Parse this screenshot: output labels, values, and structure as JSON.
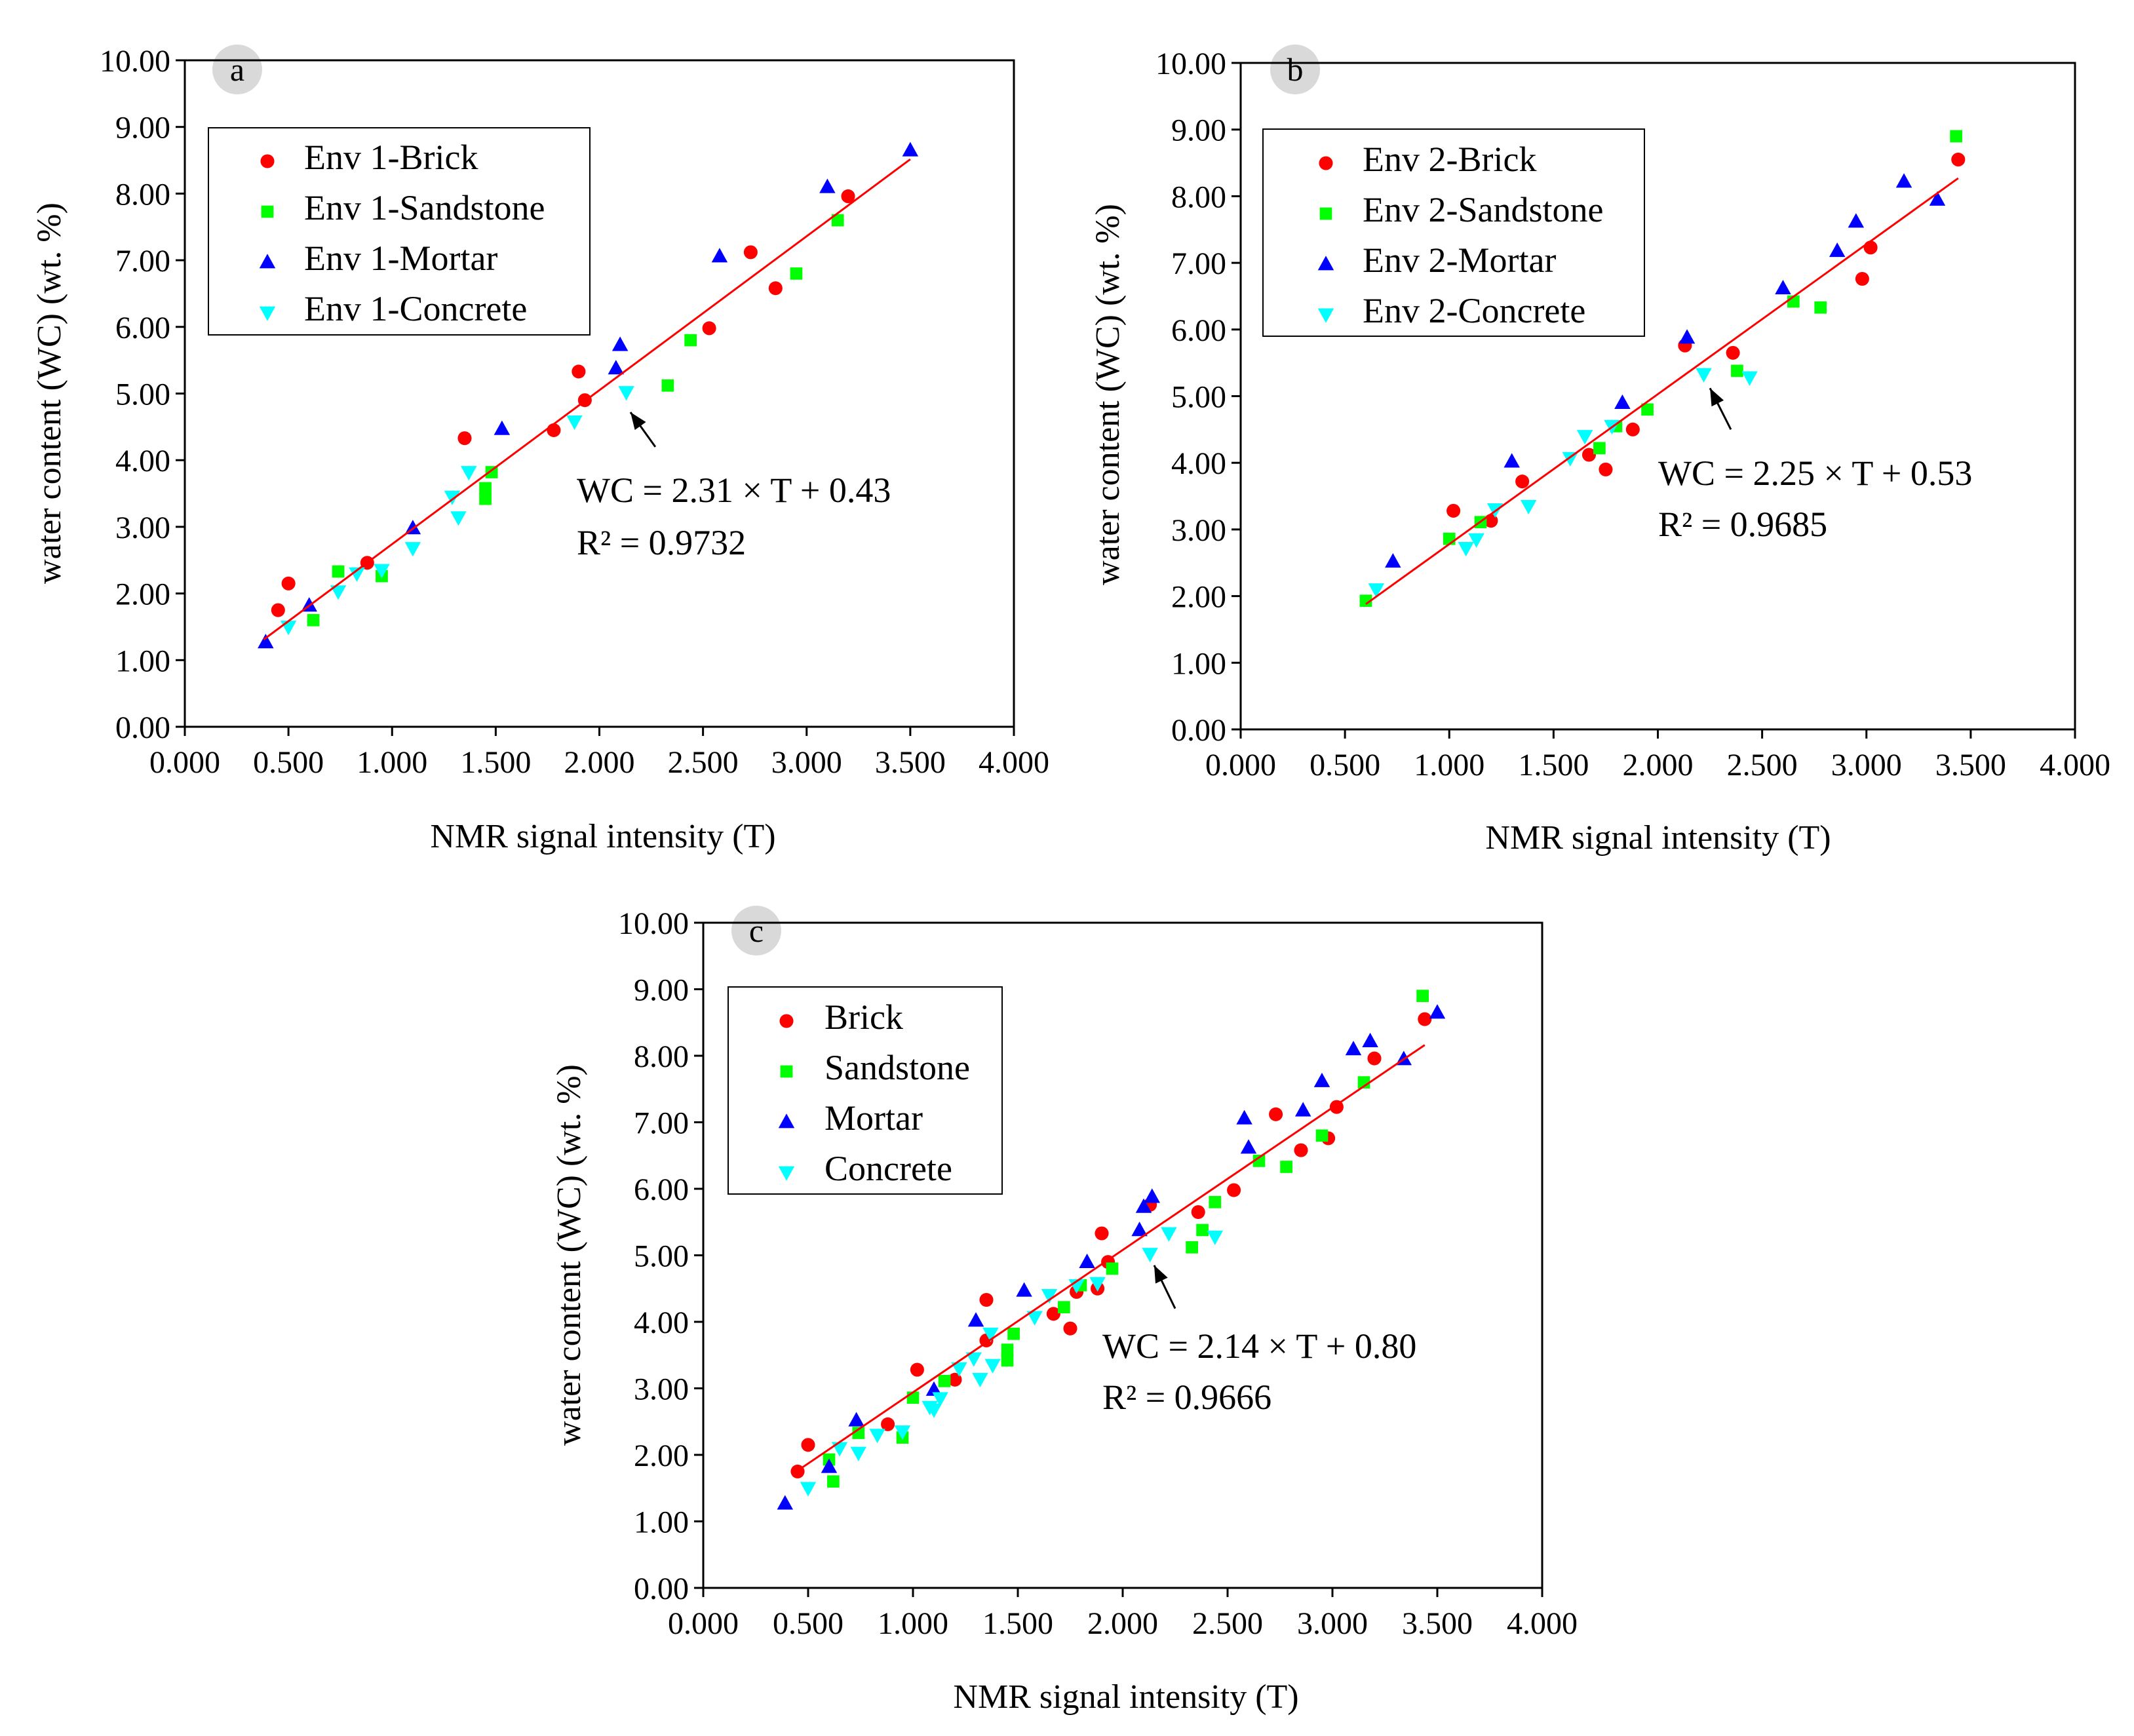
{
  "colors": {
    "brick": "#ff0000",
    "sandstone": "#00ff00",
    "mortar": "#0000ff",
    "concrete": "#00ffff",
    "fit_line": "#ff0000",
    "badge": "#d9d9d9"
  },
  "chart_data": [
    {
      "type": "scatter",
      "panel_label": "a",
      "xlabel": "NMR signal intensity (T)",
      "ylabel": "water content (WC) (wt. %)",
      "xlim": [
        0,
        4
      ],
      "ylim": [
        0,
        10
      ],
      "x_ticks": [
        "0.000",
        "0.500",
        "1.000",
        "1.500",
        "2.000",
        "2.500",
        "3.000",
        "3.500",
        "4.000"
      ],
      "y_ticks": [
        "0.00",
        "1.00",
        "2.00",
        "3.00",
        "4.00",
        "5.00",
        "6.00",
        "7.00",
        "8.00",
        "9.00",
        "10.00"
      ],
      "legend": [
        "Env 1-Brick",
        "Env 1-Sandstone",
        "Env 1-Mortar",
        "Env 1-Concrete"
      ],
      "equation": "WC = 2.31 × T + 0.43",
      "r2": "R² = 0.9732",
      "fit": {
        "slope": 2.31,
        "intercept": 0.43,
        "x_range": [
          0.38,
          3.5
        ]
      },
      "arrow": {
        "from": [
          2.27,
          4.2
        ],
        "to": [
          2.15,
          4.72
        ]
      },
      "series": [
        {
          "name": "Env 1-Brick",
          "marker": "circle",
          "color_key": "brick",
          "points": [
            [
              0.45,
              1.75
            ],
            [
              0.5,
              2.15
            ],
            [
              0.88,
              2.46
            ],
            [
              1.35,
              4.33
            ],
            [
              1.78,
              4.45
            ],
            [
              1.9,
              5.33
            ],
            [
              1.93,
              4.9
            ],
            [
              2.53,
              5.98
            ],
            [
              2.73,
              7.12
            ],
            [
              2.85,
              6.58
            ],
            [
              3.2,
              7.96
            ]
          ]
        },
        {
          "name": "Env 1-Sandstone",
          "marker": "square",
          "color_key": "sandstone",
          "points": [
            [
              0.62,
              1.6
            ],
            [
              0.74,
              2.33
            ],
            [
              0.95,
              2.26
            ],
            [
              1.45,
              3.42
            ],
            [
              1.45,
              3.58
            ],
            [
              1.48,
              3.82
            ],
            [
              2.33,
              5.12
            ],
            [
              2.44,
              5.8
            ],
            [
              2.95,
              6.8
            ],
            [
              3.15,
              7.6
            ]
          ]
        },
        {
          "name": "Env 1-Mortar",
          "marker": "triangle-up",
          "color_key": "mortar",
          "points": [
            [
              0.39,
              1.27
            ],
            [
              0.6,
              1.82
            ],
            [
              1.1,
              2.98
            ],
            [
              1.53,
              4.47
            ],
            [
              2.08,
              5.38
            ],
            [
              2.1,
              5.73
            ],
            [
              2.58,
              7.06
            ],
            [
              3.1,
              8.1
            ],
            [
              3.5,
              8.65
            ]
          ]
        },
        {
          "name": "Env 1-Concrete",
          "marker": "triangle-down",
          "color_key": "concrete",
          "points": [
            [
              0.5,
              1.5
            ],
            [
              0.74,
              2.03
            ],
            [
              0.83,
              2.3
            ],
            [
              0.95,
              2.35
            ],
            [
              1.1,
              2.68
            ],
            [
              1.29,
              3.45
            ],
            [
              1.32,
              3.14
            ],
            [
              1.37,
              3.82
            ],
            [
              1.88,
              4.58
            ],
            [
              2.13,
              5.02
            ]
          ]
        }
      ]
    },
    {
      "type": "scatter",
      "panel_label": "b",
      "xlabel": "NMR signal intensity (T)",
      "ylabel": "water content (WC) (wt. %)",
      "xlim": [
        0,
        4
      ],
      "ylim": [
        0,
        10
      ],
      "x_ticks": [
        "0.000",
        "0.500",
        "1.000",
        "1.500",
        "2.000",
        "2.500",
        "3.000",
        "3.500",
        "4.000"
      ],
      "y_ticks": [
        "0.00",
        "1.00",
        "2.00",
        "3.00",
        "4.00",
        "5.00",
        "6.00",
        "7.00",
        "8.00",
        "9.00",
        "10.00"
      ],
      "legend": [
        "Env 2-Brick",
        "Env 2-Sandstone",
        "Env 2-Mortar",
        "Env 2-Concrete"
      ],
      "equation": "WC = 2.25 × T + 0.53",
      "r2": "R² = 0.9685",
      "fit": {
        "slope": 2.25,
        "intercept": 0.53,
        "x_range": [
          0.6,
          3.44
        ]
      },
      "arrow": {
        "from": [
          2.35,
          4.5
        ],
        "to": [
          2.25,
          5.12
        ]
      },
      "series": [
        {
          "name": "Env 2-Brick",
          "marker": "circle",
          "color_key": "brick",
          "points": [
            [
              1.02,
              3.28
            ],
            [
              1.2,
              3.13
            ],
            [
              1.35,
              3.72
            ],
            [
              1.67,
              4.12
            ],
            [
              1.75,
              3.9
            ],
            [
              1.88,
              4.5
            ],
            [
              2.13,
              5.76
            ],
            [
              2.36,
              5.65
            ],
            [
              2.98,
              6.76
            ],
            [
              3.02,
              7.23
            ],
            [
              3.44,
              8.55
            ]
          ]
        },
        {
          "name": "Env 2-Sandstone",
          "marker": "square",
          "color_key": "sandstone",
          "points": [
            [
              0.6,
              1.93
            ],
            [
              1.0,
              2.86
            ],
            [
              1.15,
              3.11
            ],
            [
              1.72,
              4.22
            ],
            [
              1.8,
              4.55
            ],
            [
              1.95,
              4.8
            ],
            [
              2.38,
              5.38
            ],
            [
              2.65,
              6.42
            ],
            [
              2.78,
              6.33
            ],
            [
              3.43,
              8.9
            ]
          ]
        },
        {
          "name": "Env 2-Mortar",
          "marker": "triangle-up",
          "color_key": "mortar",
          "points": [
            [
              0.73,
              2.52
            ],
            [
              1.3,
              4.02
            ],
            [
              1.83,
              4.9
            ],
            [
              2.14,
              5.88
            ],
            [
              2.6,
              6.62
            ],
            [
              2.86,
              7.18
            ],
            [
              2.95,
              7.62
            ],
            [
              3.18,
              8.22
            ],
            [
              3.34,
              7.95
            ]
          ]
        },
        {
          "name": "Env 2-Concrete",
          "marker": "triangle-down",
          "color_key": "concrete",
          "points": [
            [
              0.65,
              2.1
            ],
            [
              1.08,
              2.72
            ],
            [
              1.13,
              2.85
            ],
            [
              1.22,
              3.3
            ],
            [
              1.38,
              3.35
            ],
            [
              1.58,
              4.07
            ],
            [
              1.65,
              4.4
            ],
            [
              1.78,
              4.55
            ],
            [
              2.22,
              5.33
            ],
            [
              2.44,
              5.28
            ]
          ]
        }
      ]
    },
    {
      "type": "scatter",
      "panel_label": "c",
      "xlabel": "NMR signal intensity (T)",
      "ylabel": "water content (WC) (wt. %)",
      "xlim": [
        0,
        4
      ],
      "ylim": [
        0,
        10
      ],
      "x_ticks": [
        "0.000",
        "0.500",
        "1.000",
        "1.500",
        "2.000",
        "2.500",
        "3.000",
        "3.500",
        "4.000"
      ],
      "y_ticks": [
        "0.00",
        "1.00",
        "2.00",
        "3.00",
        "4.00",
        "5.00",
        "6.00",
        "7.00",
        "8.00",
        "9.00",
        "10.00"
      ],
      "legend": [
        "Brick",
        "Sandstone",
        "Mortar",
        "Concrete"
      ],
      "equation": "WC = 2.14 × T + 0.80",
      "r2": "R² = 0.9666",
      "fit": {
        "slope": 2.14,
        "intercept": 0.8,
        "x_range": [
          0.45,
          3.44
        ]
      },
      "arrow": {
        "from": [
          2.25,
          4.2
        ],
        "to": [
          2.15,
          4.85
        ]
      },
      "series": [
        {
          "name": "Brick",
          "marker": "circle",
          "color_key": "brick",
          "points": [
            [
              0.45,
              1.75
            ],
            [
              0.5,
              2.15
            ],
            [
              0.88,
              2.46
            ],
            [
              1.02,
              3.28
            ],
            [
              1.2,
              3.13
            ],
            [
              1.35,
              3.72
            ],
            [
              1.35,
              4.33
            ],
            [
              1.67,
              4.12
            ],
            [
              1.75,
              3.9
            ],
            [
              1.78,
              4.45
            ],
            [
              1.88,
              4.5
            ],
            [
              1.9,
              5.33
            ],
            [
              1.93,
              4.9
            ],
            [
              2.13,
              5.76
            ],
            [
              2.36,
              5.65
            ],
            [
              2.53,
              5.98
            ],
            [
              2.73,
              7.12
            ],
            [
              2.85,
              6.58
            ],
            [
              2.98,
              6.76
            ],
            [
              3.02,
              7.23
            ],
            [
              3.2,
              7.96
            ],
            [
              3.44,
              8.55
            ]
          ]
        },
        {
          "name": "Sandstone",
          "marker": "square",
          "color_key": "sandstone",
          "points": [
            [
              0.6,
              1.93
            ],
            [
              0.62,
              1.6
            ],
            [
              0.74,
              2.33
            ],
            [
              0.95,
              2.26
            ],
            [
              1.0,
              2.86
            ],
            [
              1.15,
              3.11
            ],
            [
              1.45,
              3.42
            ],
            [
              1.45,
              3.58
            ],
            [
              1.48,
              3.82
            ],
            [
              1.72,
              4.22
            ],
            [
              1.8,
              4.55
            ],
            [
              1.95,
              4.8
            ],
            [
              2.33,
              5.12
            ],
            [
              2.38,
              5.38
            ],
            [
              2.44,
              5.8
            ],
            [
              2.65,
              6.42
            ],
            [
              2.78,
              6.33
            ],
            [
              2.95,
              6.8
            ],
            [
              3.15,
              7.6
            ],
            [
              3.43,
              8.9
            ]
          ]
        },
        {
          "name": "Mortar",
          "marker": "triangle-up",
          "color_key": "mortar",
          "points": [
            [
              0.39,
              1.27
            ],
            [
              0.6,
              1.82
            ],
            [
              0.73,
              2.52
            ],
            [
              1.1,
              2.98
            ],
            [
              1.3,
              4.02
            ],
            [
              1.53,
              4.47
            ],
            [
              1.83,
              4.9
            ],
            [
              2.08,
              5.38
            ],
            [
              2.1,
              5.73
            ],
            [
              2.14,
              5.88
            ],
            [
              2.58,
              7.06
            ],
            [
              2.6,
              6.62
            ],
            [
              2.86,
              7.18
            ],
            [
              2.95,
              7.62
            ],
            [
              3.1,
              8.1
            ],
            [
              3.18,
              8.22
            ],
            [
              3.34,
              7.95
            ],
            [
              3.5,
              8.65
            ]
          ]
        },
        {
          "name": "Concrete",
          "marker": "triangle-down",
          "color_key": "concrete",
          "points": [
            [
              0.5,
              1.5
            ],
            [
              0.65,
              2.1
            ],
            [
              0.74,
              2.03
            ],
            [
              0.83,
              2.3
            ],
            [
              0.95,
              2.35
            ],
            [
              1.08,
              2.72
            ],
            [
              1.1,
              2.68
            ],
            [
              1.13,
              2.85
            ],
            [
              1.22,
              3.3
            ],
            [
              1.29,
              3.45
            ],
            [
              1.32,
              3.14
            ],
            [
              1.37,
              3.82
            ],
            [
              1.38,
              3.35
            ],
            [
              1.58,
              4.07
            ],
            [
              1.65,
              4.4
            ],
            [
              1.78,
              4.55
            ],
            [
              1.88,
              4.58
            ],
            [
              2.13,
              5.02
            ],
            [
              2.22,
              5.33
            ],
            [
              2.44,
              5.28
            ]
          ]
        }
      ]
    }
  ]
}
